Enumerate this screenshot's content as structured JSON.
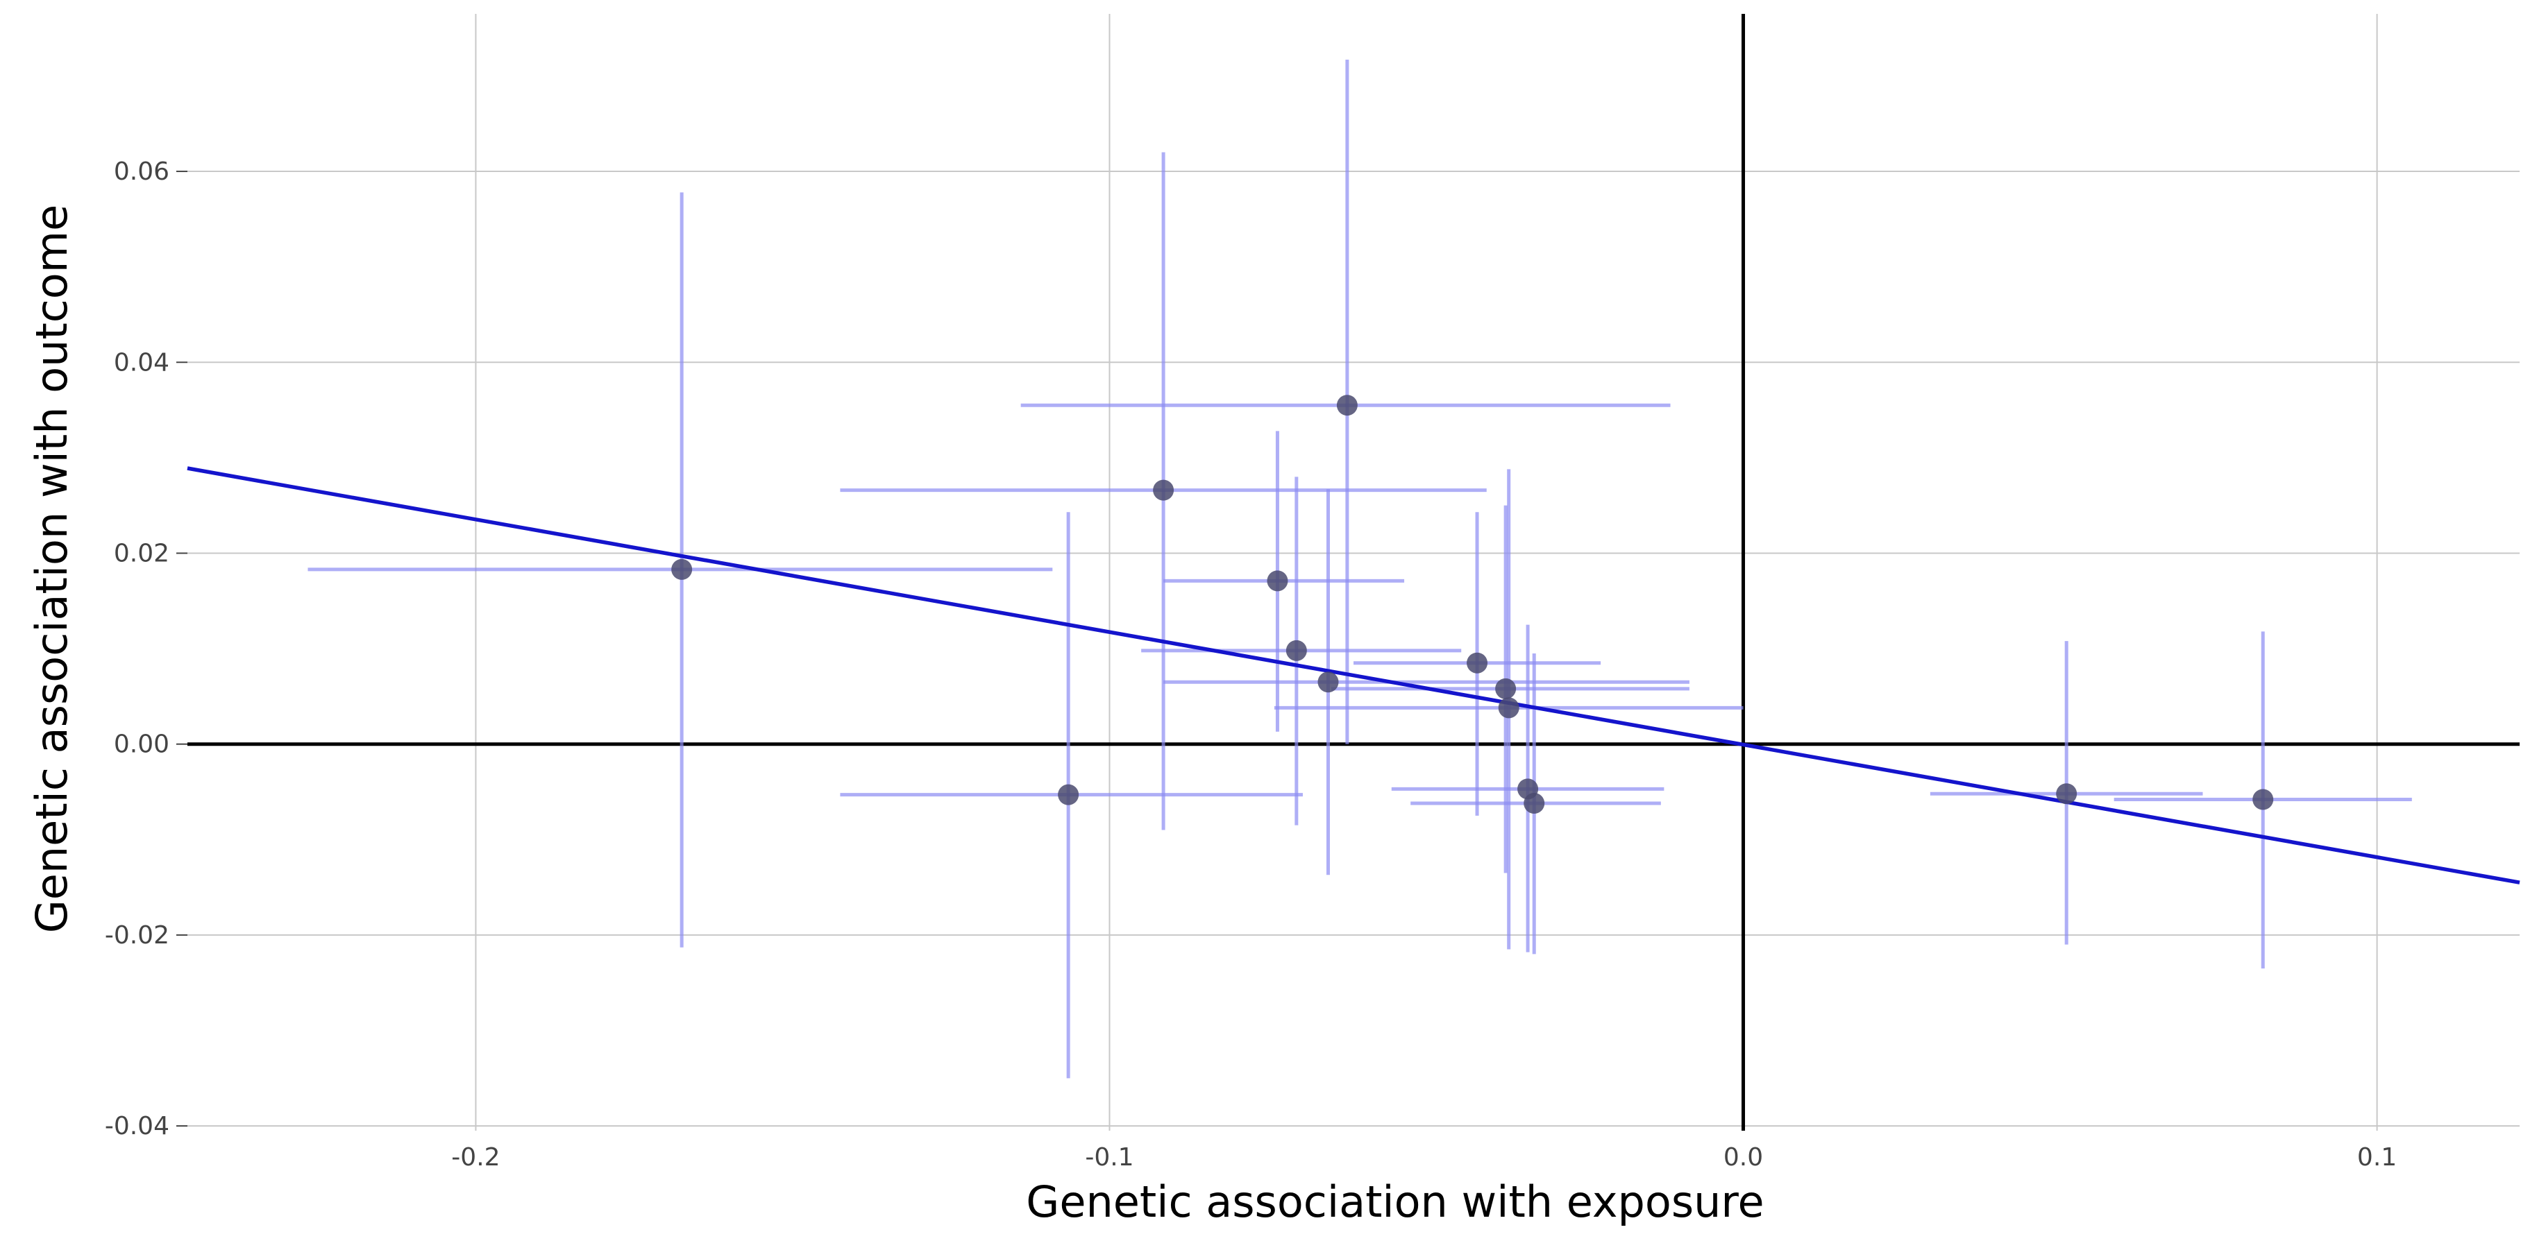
{
  "chart_data": {
    "type": "scatter",
    "title": "",
    "xlabel": "Genetic association with exposure",
    "ylabel": "Genetic association with outcome",
    "xlim": [
      -0.2455,
      0.1225
    ],
    "ylim": [
      -0.0405,
      0.0765
    ],
    "x_ticks": [
      {
        "value": -0.2,
        "label": "-0.2"
      },
      {
        "value": -0.1,
        "label": "-0.1"
      },
      {
        "value": 0.0,
        "label": "0.0"
      },
      {
        "value": 0.1,
        "label": "0.1"
      }
    ],
    "y_ticks": [
      {
        "value": -0.04,
        "label": "-0.04"
      },
      {
        "value": -0.02,
        "label": "-0.02"
      },
      {
        "value": 0.0,
        "label": "0.00"
      },
      {
        "value": 0.02,
        "label": "0.02"
      },
      {
        "value": 0.04,
        "label": "0.04"
      },
      {
        "value": 0.06,
        "label": "0.06"
      }
    ],
    "grid": true,
    "reference_lines": {
      "x": 0,
      "y": 0
    },
    "points": [
      {
        "x": -0.1675,
        "y": 0.0183,
        "x_low": -0.2265,
        "x_high": -0.109,
        "y_low": -0.0213,
        "y_high": 0.0578
      },
      {
        "x": -0.1065,
        "y": -0.0053,
        "x_low": -0.1425,
        "x_high": -0.0695,
        "y_low": -0.035,
        "y_high": 0.0243
      },
      {
        "x": -0.0915,
        "y": 0.0266,
        "x_low": -0.1425,
        "x_high": -0.0405,
        "y_low": -0.009,
        "y_high": 0.062
      },
      {
        "x": -0.0735,
        "y": 0.0171,
        "x_low": -0.0915,
        "x_high": -0.0535,
        "y_low": 0.0013,
        "y_high": 0.0328
      },
      {
        "x": -0.0705,
        "y": 0.0098,
        "x_low": -0.095,
        "x_high": -0.0445,
        "y_low": -0.0085,
        "y_high": 0.028
      },
      {
        "x": -0.0655,
        "y": 0.0065,
        "x_low": -0.0915,
        "x_high": -0.0085,
        "y_low": -0.0137,
        "y_high": 0.0267
      },
      {
        "x": -0.0625,
        "y": 0.0355,
        "x_low": -0.114,
        "x_high": -0.0115,
        "y_low": 0.0,
        "y_high": 0.0717
      },
      {
        "x": -0.042,
        "y": 0.0085,
        "x_low": -0.0615,
        "x_high": -0.0225,
        "y_low": -0.0075,
        "y_high": 0.0243
      },
      {
        "x": -0.0375,
        "y": 0.0058,
        "x_low": -0.065,
        "x_high": -0.0085,
        "y_low": -0.0135,
        "y_high": 0.025
      },
      {
        "x": -0.037,
        "y": 0.0038,
        "x_low": -0.074,
        "x_high": 0.0,
        "y_low": -0.0215,
        "y_high": 0.0288
      },
      {
        "x": -0.034,
        "y": -0.0047,
        "x_low": -0.0555,
        "x_high": -0.0125,
        "y_low": -0.0218,
        "y_high": 0.0125
      },
      {
        "x": -0.033,
        "y": -0.0062,
        "x_low": -0.0525,
        "x_high": -0.013,
        "y_low": -0.022,
        "y_high": 0.0095
      },
      {
        "x": 0.051,
        "y": -0.0052,
        "x_low": 0.0295,
        "x_high": 0.0725,
        "y_low": -0.021,
        "y_high": 0.0108
      },
      {
        "x": 0.082,
        "y": -0.0058,
        "x_low": 0.0585,
        "x_high": 0.1055,
        "y_low": -0.0235,
        "y_high": 0.0118
      }
    ],
    "fit_line": {
      "x_start": -0.2455,
      "y_start": 0.0289,
      "x_end": 0.1225,
      "y_end": -0.0145
    },
    "colors": {
      "point": "#4a4a6e",
      "error_bar": "#8c8cf2",
      "fit_line": "#1414cc",
      "grid": "#c8c8c8",
      "reference": "#000000"
    }
  }
}
